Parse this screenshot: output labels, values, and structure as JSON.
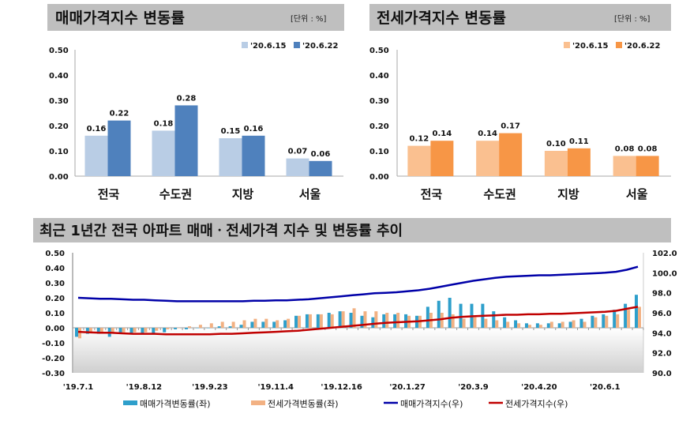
{
  "chart_data": [
    {
      "type": "bar",
      "title": "매매가격지수 변동률",
      "unit_label": "[단위 : %]",
      "categories": [
        "전국",
        "수도권",
        "지방",
        "서울"
      ],
      "series": [
        {
          "name": "'20.6.15",
          "values": [
            0.16,
            0.18,
            0.15,
            0.07
          ],
          "color": "#b9cde5"
        },
        {
          "name": "'20.6.22",
          "values": [
            0.22,
            0.28,
            0.16,
            0.06
          ],
          "color": "#4f81bd"
        }
      ],
      "ylim": [
        0,
        0.5
      ],
      "yticks": [
        "0.00",
        "0.10",
        "0.20",
        "0.30",
        "0.40",
        "0.50"
      ],
      "legend": "top-right",
      "grid": false
    },
    {
      "type": "bar",
      "title": "전세가격지수 변동률",
      "unit_label": "[단위 : %]",
      "categories": [
        "전국",
        "수도권",
        "지방",
        "서울"
      ],
      "series": [
        {
          "name": "'20.6.15",
          "values": [
            0.12,
            0.14,
            0.1,
            0.08
          ],
          "color": "#fac090"
        },
        {
          "name": "'20.6.22",
          "values": [
            0.14,
            0.17,
            0.11,
            0.08
          ],
          "color": "#f79646"
        }
      ],
      "ylim": [
        0,
        0.5
      ],
      "yticks": [
        "0.00",
        "0.10",
        "0.20",
        "0.30",
        "0.40",
        "0.50"
      ],
      "legend": "top-right",
      "grid": false
    },
    {
      "type": "bar+line",
      "title": "최근 1년간 전국 아파트 매매ㆍ전세가격 지수 및 변동률 추이",
      "x_tick_labels": [
        "'19.7.1",
        "'19.8.12",
        "'19.9.23",
        "'19.11.4",
        "'19.12.16",
        "'20.1.27",
        "'20.3.9",
        "'20.4.20",
        "'20.6.1"
      ],
      "x_tick_every_weeks": 6,
      "weeks": 52,
      "ylim_left": [
        -0.3,
        0.5
      ],
      "yticks_left": [
        "-0.30",
        "-0.20",
        "-0.10",
        "0.00",
        "0.10",
        "0.20",
        "0.30",
        "0.40",
        "0.50"
      ],
      "ylim_right": [
        90,
        102
      ],
      "yticks_right": [
        "90.0",
        "92.0",
        "94.0",
        "96.0",
        "98.0",
        "100.0",
        "102.0"
      ],
      "legend": "bottom",
      "grid": false,
      "series": [
        {
          "name": "매매가격변동률(좌)",
          "kind": "bar",
          "axis": "left",
          "color": "#2e9fcb",
          "values": [
            -0.06,
            -0.04,
            -0.04,
            -0.06,
            -0.04,
            -0.04,
            -0.04,
            -0.04,
            -0.03,
            -0.01,
            -0.01,
            0.0,
            0.0,
            0.01,
            0.01,
            0.02,
            0.04,
            0.04,
            0.04,
            0.05,
            0.08,
            0.09,
            0.09,
            0.1,
            0.11,
            0.1,
            0.08,
            0.07,
            0.09,
            0.09,
            0.09,
            0.08,
            0.14,
            0.18,
            0.2,
            0.16,
            0.16,
            0.16,
            0.11,
            0.07,
            0.05,
            0.03,
            0.03,
            0.03,
            0.03,
            0.04,
            0.06,
            0.08,
            0.09,
            0.12,
            0.16,
            0.22
          ]
        },
        {
          "name": "전세가격변동률(좌)",
          "kind": "bar",
          "axis": "left",
          "color": "#f2b183",
          "values": [
            -0.07,
            -0.03,
            -0.03,
            -0.03,
            -0.03,
            -0.03,
            -0.03,
            -0.02,
            -0.01,
            0.0,
            0.01,
            0.02,
            0.03,
            0.04,
            0.04,
            0.05,
            0.06,
            0.06,
            0.05,
            0.06,
            0.08,
            0.09,
            0.09,
            0.09,
            0.11,
            0.13,
            0.11,
            0.11,
            0.1,
            0.1,
            0.08,
            0.08,
            0.1,
            0.1,
            0.09,
            0.06,
            0.07,
            0.06,
            0.05,
            0.04,
            0.03,
            0.02,
            0.02,
            0.04,
            0.04,
            0.05,
            0.04,
            0.07,
            0.08,
            0.09,
            0.12,
            0.14
          ]
        },
        {
          "name": "매매가격지수(우)",
          "kind": "line",
          "axis": "right",
          "color": "#0000a8",
          "values": [
            97.5,
            97.45,
            97.4,
            97.4,
            97.35,
            97.3,
            97.3,
            97.25,
            97.2,
            97.15,
            97.15,
            97.15,
            97.15,
            97.15,
            97.15,
            97.15,
            97.2,
            97.2,
            97.25,
            97.25,
            97.3,
            97.35,
            97.45,
            97.55,
            97.65,
            97.75,
            97.85,
            97.95,
            98.0,
            98.05,
            98.15,
            98.25,
            98.4,
            98.6,
            98.8,
            99.0,
            99.2,
            99.35,
            99.5,
            99.6,
            99.65,
            99.7,
            99.75,
            99.75,
            99.8,
            99.85,
            99.9,
            99.95,
            100.0,
            100.1,
            100.3,
            100.6
          ]
        },
        {
          "name": "전세가격지수(우)",
          "kind": "line",
          "axis": "right",
          "color": "#c00000",
          "values": [
            94.1,
            94.05,
            94.0,
            94.0,
            93.95,
            93.9,
            93.9,
            93.9,
            93.85,
            93.85,
            93.85,
            93.85,
            93.85,
            93.9,
            93.9,
            93.95,
            94.0,
            94.05,
            94.1,
            94.15,
            94.2,
            94.3,
            94.4,
            94.5,
            94.6,
            94.7,
            94.8,
            94.9,
            95.0,
            95.05,
            95.1,
            95.15,
            95.25,
            95.35,
            95.5,
            95.6,
            95.65,
            95.7,
            95.75,
            95.8,
            95.8,
            95.85,
            95.85,
            95.9,
            95.9,
            95.95,
            96.0,
            96.05,
            96.1,
            96.2,
            96.4,
            96.6
          ]
        }
      ]
    }
  ]
}
